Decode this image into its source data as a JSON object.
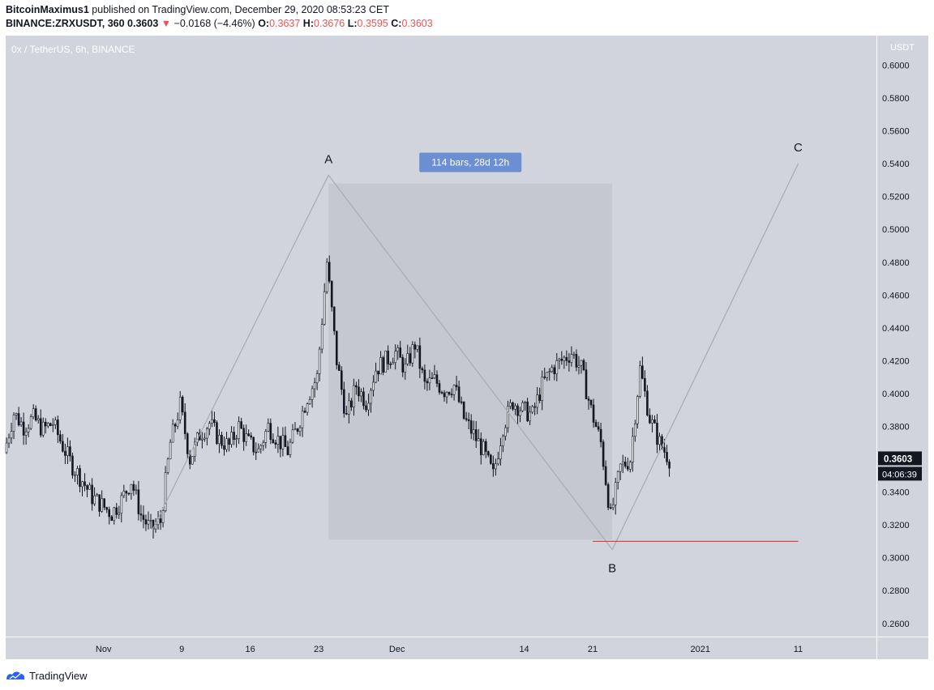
{
  "header": {
    "author": "BitcoinMaximus1",
    "published_text": " published on TradingView.com, December 29, 2020 08:53:23 CET",
    "symbol": "BINANCE:ZRXUSDT, 360",
    "price": "0.3603",
    "arrow": "▼",
    "change": "−0.0168 (−4.46%)",
    "o_label": "O:",
    "o_value": "0.3637",
    "h_label": "H:",
    "h_value": "0.3676",
    "l_label": "L:",
    "l_value": "0.3595",
    "c_label": "C:",
    "c_value": "0.3603"
  },
  "footer": {
    "brand": "TradingView"
  },
  "colors": {
    "pane_bg": "#d1d4dc",
    "candle": "#131722",
    "down": "#ef5350",
    "range_box": "#c5c8d0",
    "range_label_bg": "#6b8fd1",
    "wave_line": "#a8abb3",
    "support_line": "#e53935"
  },
  "chart_data": {
    "type": "candlestick",
    "title": "0x / TetherUS, 6h, BINANCE",
    "currency_label": "USDT",
    "y_ticks": [
      "0.6000",
      "0.5800",
      "0.5600",
      "0.5400",
      "0.5200",
      "0.5000",
      "0.4800",
      "0.4600",
      "0.4400",
      "0.4200",
      "0.4000",
      "0.3800",
      "0.3600",
      "0.3400",
      "0.3200",
      "0.3000",
      "0.2800",
      "0.2600"
    ],
    "ylim": [
      0.252,
      0.618
    ],
    "x_ticks": [
      {
        "label": "Nov",
        "date": "2020-11-01"
      },
      {
        "label": "9",
        "date": "2020-11-09"
      },
      {
        "label": "16",
        "date": "2020-11-16"
      },
      {
        "label": "23",
        "date": "2020-11-23"
      },
      {
        "label": "Dec",
        "date": "2020-12-01"
      },
      {
        "label": "14",
        "date": "2020-12-14"
      },
      {
        "label": "21",
        "date": "2020-12-21"
      },
      {
        "label": "2021",
        "date": "2021-01-01"
      },
      {
        "label": "11",
        "date": "2021-01-11"
      }
    ],
    "current_price": "0.3603",
    "countdown": "04:06:39",
    "close_series": {
      "name": "ZRXUSDT 6h",
      "points": [
        [
          "2020-10-22",
          0.364
        ],
        [
          "2020-10-23",
          0.388
        ],
        [
          "2020-10-24",
          0.38
        ],
        [
          "2020-10-25",
          0.385
        ],
        [
          "2020-10-26",
          0.378
        ],
        [
          "2020-10-27",
          0.382
        ],
        [
          "2020-10-28",
          0.368
        ],
        [
          "2020-10-29",
          0.356
        ],
        [
          "2020-10-30",
          0.347
        ],
        [
          "2020-10-31",
          0.337
        ],
        [
          "2020-11-01",
          0.332
        ],
        [
          "2020-11-02",
          0.327
        ],
        [
          "2020-11-03",
          0.335
        ],
        [
          "2020-11-04",
          0.347
        ],
        [
          "2020-11-05",
          0.326
        ],
        [
          "2020-11-06",
          0.317
        ],
        [
          "2020-11-07",
          0.322
        ],
        [
          "2020-11-08",
          0.37
        ],
        [
          "2020-11-09",
          0.393
        ],
        [
          "2020-11-10",
          0.36
        ],
        [
          "2020-11-11",
          0.375
        ],
        [
          "2020-11-12",
          0.382
        ],
        [
          "2020-11-13",
          0.372
        ],
        [
          "2020-11-14",
          0.368
        ],
        [
          "2020-11-15",
          0.38
        ],
        [
          "2020-11-16",
          0.37
        ],
        [
          "2020-11-17",
          0.365
        ],
        [
          "2020-11-18",
          0.38
        ],
        [
          "2020-11-19",
          0.372
        ],
        [
          "2020-11-20",
          0.365
        ],
        [
          "2020-11-21",
          0.38
        ],
        [
          "2020-11-22",
          0.398
        ],
        [
          "2020-11-23",
          0.41
        ],
        [
          "2020-11-24",
          0.48
        ],
        [
          "2020-11-25",
          0.42
        ],
        [
          "2020-11-26",
          0.385
        ],
        [
          "2020-11-27",
          0.405
        ],
        [
          "2020-11-28",
          0.395
        ],
        [
          "2020-11-29",
          0.415
        ],
        [
          "2020-11-30",
          0.42
        ],
        [
          "2020-12-01",
          0.425
        ],
        [
          "2020-12-02",
          0.415
        ],
        [
          "2020-12-03",
          0.43
        ],
        [
          "2020-12-04",
          0.405
        ],
        [
          "2020-12-05",
          0.408
        ],
        [
          "2020-12-06",
          0.402
        ],
        [
          "2020-12-07",
          0.405
        ],
        [
          "2020-12-08",
          0.385
        ],
        [
          "2020-12-09",
          0.375
        ],
        [
          "2020-12-10",
          0.365
        ],
        [
          "2020-12-11",
          0.35
        ],
        [
          "2020-12-12",
          0.38
        ],
        [
          "2020-12-13",
          0.395
        ],
        [
          "2020-12-14",
          0.39
        ],
        [
          "2020-12-15",
          0.387
        ],
        [
          "2020-12-16",
          0.405
        ],
        [
          "2020-12-17",
          0.415
        ],
        [
          "2020-12-18",
          0.42
        ],
        [
          "2020-12-19",
          0.425
        ],
        [
          "2020-12-20",
          0.415
        ],
        [
          "2020-12-21",
          0.39
        ],
        [
          "2020-12-22",
          0.37
        ],
        [
          "2020-12-23",
          0.325
        ],
        [
          "2020-12-24",
          0.355
        ],
        [
          "2020-12-25",
          0.36
        ],
        [
          "2020-12-26",
          0.415
        ],
        [
          "2020-12-27",
          0.385
        ],
        [
          "2020-12-28",
          0.37
        ],
        [
          "2020-12-29",
          0.3603
        ]
      ]
    },
    "annotations": [
      {
        "label": "A",
        "date": "2020-11-24",
        "price": 0.533
      },
      {
        "label": "B",
        "date": "2020-12-23",
        "price": 0.305
      },
      {
        "label": "C",
        "date": "2021-01-11",
        "price": 0.54
      }
    ],
    "range_measure": {
      "label": "114 bars, 28d 12h",
      "from_date": "2020-11-24",
      "to_date": "2020-12-23",
      "from_price": 0.311,
      "to_price": 0.528
    },
    "support_line": {
      "price": 0.31,
      "from_date": "2020-12-21",
      "to_date": "2021-01-11"
    }
  }
}
